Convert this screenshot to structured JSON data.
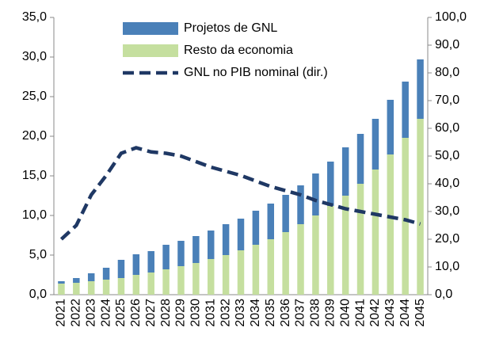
{
  "chart_data": {
    "type": "bar",
    "stacked": true,
    "legend": "top",
    "categories": [
      "2021",
      "2022",
      "2023",
      "2024",
      "2025",
      "2026",
      "2027",
      "2028",
      "2029",
      "2030",
      "2031",
      "2032",
      "2033",
      "2034",
      "2035",
      "2036",
      "2037",
      "2038",
      "2039",
      "2040",
      "2041",
      "2042",
      "2043",
      "2044",
      "2045"
    ],
    "series": [
      {
        "name": "Projetos de GNL",
        "type": "bar",
        "color": "#4a80b8",
        "values": [
          0.3,
          0.6,
          1.0,
          1.5,
          2.3,
          2.6,
          2.7,
          3.1,
          3.2,
          3.4,
          3.6,
          3.9,
          4.0,
          4.3,
          4.5,
          4.7,
          4.9,
          5.3,
          5.6,
          6.1,
          6.3,
          6.4,
          6.9,
          7.1,
          7.5
        ]
      },
      {
        "name": "Resto da economia",
        "type": "bar",
        "color": "#c5df9f",
        "values": [
          1.4,
          1.5,
          1.7,
          1.9,
          2.1,
          2.5,
          2.8,
          3.2,
          3.6,
          4.0,
          4.5,
          5.0,
          5.6,
          6.3,
          7.0,
          7.9,
          8.9,
          10.0,
          11.2,
          12.5,
          14.0,
          15.8,
          17.7,
          19.8,
          22.2
        ]
      },
      {
        "name": "GNL no PIB nominal (dir.)",
        "type": "line",
        "axis": "y2",
        "color": "#1f3864",
        "values": [
          20,
          25,
          36,
          43,
          51,
          53,
          51.5,
          51,
          50,
          48,
          46,
          44.5,
          43,
          41,
          39,
          37.5,
          36,
          34,
          32.5,
          31,
          30,
          29,
          28,
          27,
          25.5
        ]
      }
    ],
    "ylim": [
      0,
      35
    ],
    "yticks": [
      {
        "value": 0,
        "label": "0,0"
      },
      {
        "value": 5,
        "label": "5,0"
      },
      {
        "value": 10,
        "label": "10,0"
      },
      {
        "value": 15,
        "label": "15,0"
      },
      {
        "value": 20,
        "label": "20,0"
      },
      {
        "value": 25,
        "label": "25,0"
      },
      {
        "value": 30,
        "label": "30,0"
      },
      {
        "value": 35,
        "label": "35,0"
      }
    ],
    "y2lim": [
      0,
      100
    ],
    "y2ticks": [
      {
        "value": 0,
        "label": "0,0"
      },
      {
        "value": 10,
        "label": "10,0"
      },
      {
        "value": 20,
        "label": "20,0"
      },
      {
        "value": 30,
        "label": "30,0"
      },
      {
        "value": 40,
        "label": "40,0"
      },
      {
        "value": 50,
        "label": "50,0"
      },
      {
        "value": 60,
        "label": "60,0"
      },
      {
        "value": 70,
        "label": "70,0"
      },
      {
        "value": 80,
        "label": "80,0"
      },
      {
        "value": 90,
        "label": "90,0"
      },
      {
        "value": 100,
        "label": "100,0"
      }
    ]
  }
}
